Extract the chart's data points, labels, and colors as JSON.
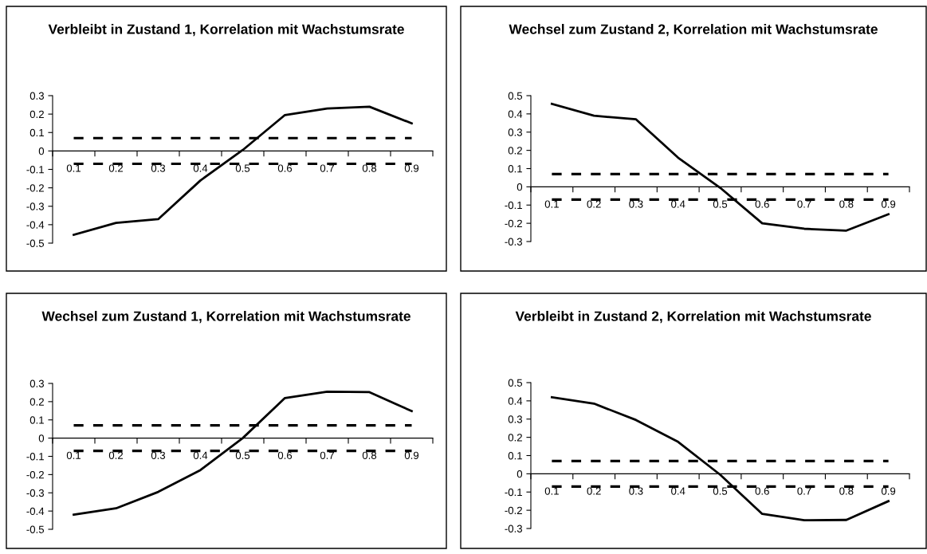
{
  "chart_data": [
    {
      "type": "line",
      "title": "Verbleibt in Zustand 1, Korrelation mit Wachstumsrate",
      "categories": [
        "0.1",
        "0.2",
        "0.3",
        "0.4",
        "0.5",
        "0.6",
        "0.7",
        "0.8",
        "0.9"
      ],
      "series": [
        {
          "color": "#000000",
          "values": [
            -0.455,
            -0.39,
            -0.37,
            -0.16,
            0.005,
            0.195,
            0.23,
            0.24,
            0.15
          ]
        }
      ],
      "ylim": [
        -0.5,
        0.3
      ],
      "yticks": [
        -0.5,
        -0.4,
        -0.3,
        -0.2,
        -0.1,
        0,
        0.1,
        0.2,
        0.3
      ],
      "grid": false,
      "ref_lines": [
        {
          "axis": "y",
          "value": 0.07,
          "color": "#000000",
          "line_style": "dashed"
        },
        {
          "axis": "y",
          "value": -0.07,
          "color": "#000000",
          "line_style": "dashed"
        }
      ]
    },
    {
      "type": "line",
      "title": "Wechsel zum Zustand 2, Korrelation mit Wachstumsrate",
      "categories": [
        "0.1",
        "0.2",
        "0.3",
        "0.4",
        "0.5",
        "0.6",
        "0.7",
        "0.8",
        "0.9"
      ],
      "series": [
        {
          "color": "#000000",
          "values": [
            0.455,
            0.39,
            0.37,
            0.16,
            -0.005,
            -0.2,
            -0.23,
            -0.24,
            -0.15
          ]
        }
      ],
      "ylim": [
        -0.3,
        0.5
      ],
      "yticks": [
        -0.3,
        -0.2,
        -0.1,
        0,
        0.1,
        0.2,
        0.3,
        0.4,
        0.5
      ],
      "grid": false,
      "ref_lines": [
        {
          "axis": "y",
          "value": 0.07,
          "color": "#000000",
          "line_style": "dashed"
        },
        {
          "axis": "y",
          "value": -0.07,
          "color": "#000000",
          "line_style": "dashed"
        }
      ]
    },
    {
      "type": "line",
      "title": "Wechsel zum Zustand 1, Korrelation mit Wachstumsrate",
      "categories": [
        "0.1",
        "0.2",
        "0.3",
        "0.4",
        "0.5",
        "0.6",
        "0.7",
        "0.8",
        "0.9"
      ],
      "series": [
        {
          "color": "#000000",
          "values": [
            -0.42,
            -0.385,
            -0.295,
            -0.175,
            0.0,
            0.22,
            0.255,
            0.252,
            0.148
          ]
        }
      ],
      "ylim": [
        -0.5,
        0.3
      ],
      "yticks": [
        -0.5,
        -0.4,
        -0.3,
        -0.2,
        -0.1,
        0,
        0.1,
        0.2,
        0.3
      ],
      "grid": false,
      "ref_lines": [
        {
          "axis": "y",
          "value": 0.07,
          "color": "#000000",
          "line_style": "dashed"
        },
        {
          "axis": "y",
          "value": -0.07,
          "color": "#000000",
          "line_style": "dashed"
        }
      ]
    },
    {
      "type": "line",
      "title": "Verbleibt in Zustand 2, Korrelation mit Wachstumsrate",
      "categories": [
        "0.1",
        "0.2",
        "0.3",
        "0.4",
        "0.5",
        "0.6",
        "0.7",
        "0.8",
        "0.9"
      ],
      "series": [
        {
          "color": "#000000",
          "values": [
            0.42,
            0.385,
            0.295,
            0.175,
            -0.005,
            -0.22,
            -0.255,
            -0.253,
            -0.15
          ]
        }
      ],
      "ylim": [
        -0.3,
        0.5
      ],
      "yticks": [
        -0.3,
        -0.2,
        -0.1,
        0,
        0.1,
        0.2,
        0.3,
        0.4,
        0.5
      ],
      "grid": false,
      "ref_lines": [
        {
          "axis": "y",
          "value": 0.07,
          "color": "#000000",
          "line_style": "dashed"
        },
        {
          "axis": "y",
          "value": -0.07,
          "color": "#000000",
          "line_style": "dashed"
        }
      ]
    }
  ]
}
